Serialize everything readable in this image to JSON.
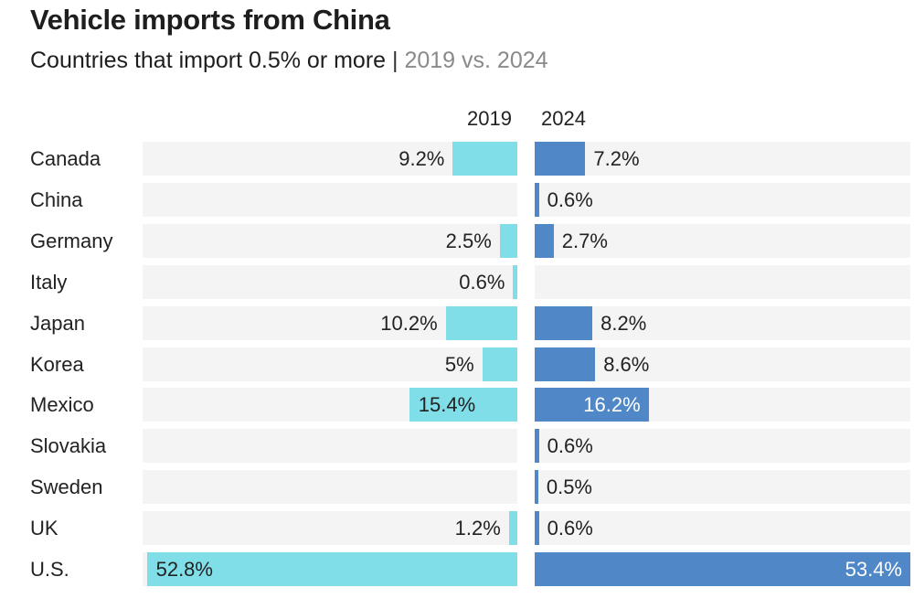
{
  "header": {
    "title": "Vehicle imports from China",
    "subtitle_main": "Countries that import 0.5% or more",
    "subtitle_sep": "|",
    "subtitle_muted": "2019 vs. 2024"
  },
  "colors": {
    "y2019": "#80dee8",
    "y2024": "#5087c7",
    "band": "#f4f4f4"
  },
  "chart_data": {
    "type": "bar",
    "orientation": "horizontal-butterfly",
    "title": "Vehicle imports from China",
    "subtitle": "Countries that import 0.5% or more | 2019 vs. 2024",
    "categories": [
      "Canada",
      "China",
      "Germany",
      "Italy",
      "Japan",
      "Korea",
      "Mexico",
      "Slovakia",
      "Sweden",
      "UK",
      "U.S."
    ],
    "series": [
      {
        "name": "2019",
        "values": [
          9.2,
          null,
          2.5,
          0.6,
          10.2,
          5,
          15.4,
          null,
          null,
          1.2,
          52.8
        ],
        "labels": [
          "9.2%",
          "",
          "2.5%",
          "0.6%",
          "10.2%",
          "5%",
          "15.4%",
          "",
          "",
          "1.2%",
          "52.8%"
        ]
      },
      {
        "name": "2024",
        "values": [
          7.2,
          0.6,
          2.7,
          null,
          8.2,
          8.6,
          16.2,
          0.6,
          0.5,
          0.6,
          53.4
        ],
        "labels": [
          "7.2%",
          "0.6%",
          "2.7%",
          "",
          "8.2%",
          "8.6%",
          "16.2%",
          "0.6%",
          "0.5%",
          "0.6%",
          "53.4%"
        ]
      }
    ],
    "unit": "%",
    "xlim": [
      0,
      53.4
    ],
    "grid": false,
    "legend": "column headers top"
  }
}
